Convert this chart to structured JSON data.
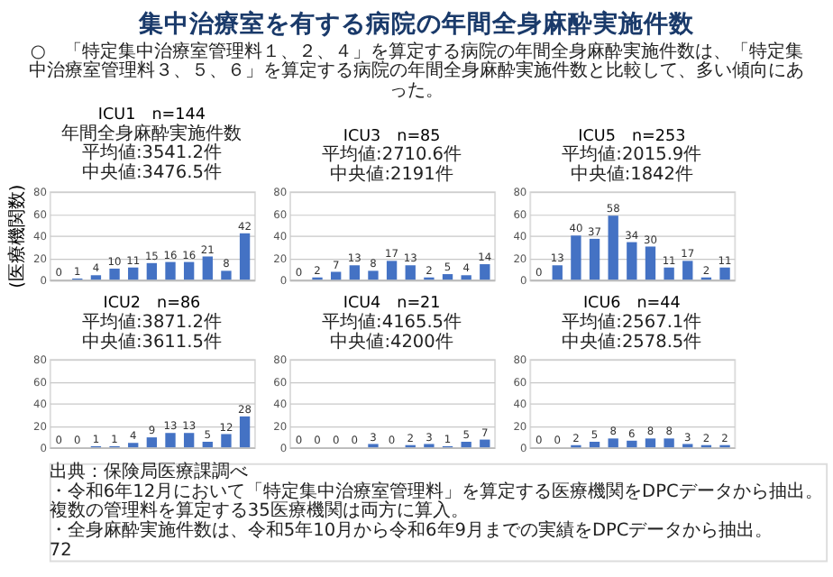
{
  "chart_data": [
    {
      "type": "bar",
      "title": "ICU1　n=144",
      "ylabel": "(医療機関数)",
      "categories": [
        null,
        null,
        null,
        null,
        null,
        null,
        null,
        null,
        null,
        null,
        null
      ],
      "values": [
        0,
        1,
        4,
        10,
        11,
        15,
        16,
        16,
        21,
        8,
        42
      ],
      "color": "#4472c4",
      "ylim": [
        0,
        80
      ],
      "yticks": [
        0,
        20,
        40,
        60,
        80
      ],
      "grid": "y",
      "data_labels": true,
      "annotations": [
        "年間全身麻酔実施件数",
        "平均値:3541.2件",
        "中央値:3476.5件"
      ]
    },
    {
      "type": "bar",
      "title": "ICU3　n=85",
      "categories": [
        null,
        null,
        null,
        null,
        null,
        null,
        null,
        null,
        null,
        null,
        null
      ],
      "values": [
        0,
        2,
        7,
        13,
        8,
        17,
        13,
        2,
        5,
        4,
        14
      ],
      "color": "#4472c4",
      "ylim": [
        0,
        80
      ],
      "yticks": [
        0,
        20,
        40,
        60,
        80
      ],
      "grid": "y",
      "data_labels": true,
      "annotations": [
        "平均値:2710.6件",
        "中央値:2191件"
      ]
    },
    {
      "type": "bar",
      "title": "ICU5　n=253",
      "categories": [
        null,
        null,
        null,
        null,
        null,
        null,
        null,
        null,
        null,
        null,
        null
      ],
      "values": [
        0,
        13,
        40,
        37,
        58,
        34,
        30,
        11,
        17,
        2,
        11
      ],
      "color": "#4472c4",
      "ylim": [
        0,
        80
      ],
      "yticks": [
        0,
        20,
        40,
        60,
        80
      ],
      "grid": "y",
      "data_labels": true,
      "annotations": [
        "平均値:2015.9件",
        "中央値:1842件"
      ]
    },
    {
      "type": "bar",
      "title": "ICU2　n=86",
      "categories": [
        null,
        null,
        null,
        null,
        null,
        null,
        null,
        null,
        null,
        null,
        null
      ],
      "values": [
        0,
        0,
        1,
        1,
        4,
        9,
        13,
        13,
        5,
        12,
        28
      ],
      "color": "#4472c4",
      "ylim": [
        0,
        80
      ],
      "yticks": [
        0,
        20,
        40,
        60,
        80
      ],
      "grid": "y",
      "data_labels": true,
      "annotations": [
        "平均値:3871.2件",
        "中央値:3611.5件"
      ]
    },
    {
      "type": "bar",
      "title": "ICU4　n=21",
      "categories": [
        null,
        null,
        null,
        null,
        null,
        null,
        null,
        null,
        null,
        null,
        null
      ],
      "values": [
        0,
        0,
        0,
        0,
        3,
        0,
        2,
        3,
        1,
        5,
        7
      ],
      "color": "#4472c4",
      "ylim": [
        0,
        80
      ],
      "yticks": [
        0,
        20,
        40,
        60,
        80
      ],
      "grid": "y",
      "data_labels": true,
      "annotations": [
        "平均値:4165.5件",
        "中央値:4200件"
      ]
    },
    {
      "type": "bar",
      "title": "ICU6　n=44",
      "categories": [
        null,
        null,
        null,
        null,
        null,
        null,
        null,
        null,
        null,
        null,
        null
      ],
      "values": [
        0,
        0,
        2,
        5,
        8,
        6,
        8,
        8,
        3,
        2,
        2
      ],
      "color": "#4472c4",
      "ylim": [
        0,
        80
      ],
      "yticks": [
        0,
        20,
        40,
        60,
        80
      ],
      "grid": "y",
      "data_labels": true,
      "annotations": [
        "平均値:2567.1件",
        "中央値:2578.5件"
      ]
    },
    {
      "type": "other",
      "title": "集中治療室を有する病院の年間全身麻酔実施件数",
      "subtitle": "○　「特定集中治療室管理料１、２、４」を算定する病院の年間全身麻酔実施件数は、「特定集中治療室管理料３、５、６」を算定する病院の年間全身麻酔実施件数と比較して、多い傾向にあった。",
      "annotations": [
        "出典：保険局医療課調べ",
        "・令和6年12月において「特定集中治療室管理料」を算定する医療機関をDPCデータから抽出。複数の管理料を算定する35医療機関は両方に算入。",
        "・全身麻酔実施件数は、令和5年10月から令和6年9月までの実績をDPCデータから抽出。",
        "72"
      ]
    }
  ]
}
